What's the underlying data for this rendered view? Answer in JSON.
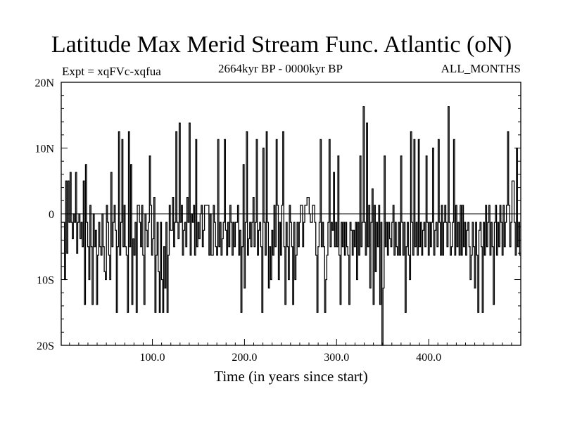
{
  "header": {
    "title": "Latitude Max Merid Stream Func. Atlantic (oN)",
    "experiment": "Expt = xqFVc-xqfua",
    "period": "2664kyr BP - 0000kyr BP",
    "months": "ALL_MONTHS"
  },
  "chart_data": {
    "type": "line",
    "title": "Latitude Max Merid Stream Func. Atlantic (oN)",
    "xlabel": "Time (in years since start)",
    "ylabel": "",
    "xlim": [
      1,
      500
    ],
    "ylim": [
      -20,
      20
    ],
    "xticks": [
      100,
      200,
      300,
      400
    ],
    "xtick_labels": [
      "100.0",
      "200.0",
      "300.0",
      "400.0"
    ],
    "yticks": [
      -20,
      -10,
      0,
      10,
      20
    ],
    "ytick_labels": [
      "20S",
      "10S",
      "0",
      "10N",
      "20N"
    ],
    "zero_line": true,
    "grid": false,
    "series": [
      {
        "values": [
          -1.3,
          -1.3,
          -1.3,
          -10.0,
          5.0,
          -6.0,
          5.0,
          -1.3,
          6.3,
          -1.3,
          -3.8,
          0.0,
          -1.3,
          6.3,
          -6.0,
          -1.3,
          0.0,
          -3.8,
          -1.3,
          -5.0,
          5.0,
          -13.8,
          7.5,
          -1.3,
          -5.0,
          -10.0,
          1.3,
          -5.0,
          -13.8,
          0.0,
          -5.0,
          -2.5,
          -13.8,
          -6.3,
          -1.3,
          -5.0,
          -6.3,
          0.0,
          -5.0,
          -8.8,
          -10.0,
          1.3,
          -1.3,
          -6.3,
          -10.0,
          6.3,
          -5.0,
          -1.3,
          1.3,
          -2.5,
          -15.0,
          -5.0,
          12.5,
          -6.3,
          -1.3,
          11.3,
          -5.0,
          1.3,
          -5.0,
          -6.3,
          -15.0,
          12.5,
          -5.0,
          7.5,
          -13.8,
          -3.8,
          -6.3,
          -1.3,
          -15.0,
          1.3,
          1.3,
          -1.3,
          -5.0,
          1.3,
          -6.3,
          -13.8,
          0.0,
          -2.5,
          -5.0,
          -1.3,
          8.8,
          1.3,
          -6.3,
          -3.8,
          2.5,
          -15.0,
          -6.3,
          -1.3,
          -8.8,
          -15.0,
          -1.3,
          -10.0,
          -15.0,
          -5.0,
          -11.3,
          -1.3,
          -15.0,
          -6.3,
          1.3,
          -2.5,
          -2.5,
          2.5,
          -5.0,
          -1.3,
          12.5,
          -1.3,
          -3.8,
          13.8,
          -1.3,
          1.3,
          -6.3,
          -2.5,
          -1.3,
          -5.0,
          2.5,
          -1.3,
          13.8,
          -6.3,
          0.0,
          -1.3,
          1.3,
          -6.3,
          11.3,
          -5.0,
          -1.3,
          -3.8,
          0.0,
          1.3,
          -5.0,
          -2.5,
          1.3,
          1.3,
          1.3,
          1.3,
          -6.3,
          0.0,
          -6.3,
          -6.3,
          1.3,
          -1.3,
          -5.0,
          -6.3,
          11.3,
          -5.0,
          -1.3,
          -6.3,
          -3.8,
          -1.3,
          11.3,
          -2.5,
          -6.3,
          -1.3,
          -5.0,
          1.3,
          -1.3,
          -6.3,
          -1.3,
          -5.0,
          -1.3,
          -1.3,
          1.3,
          -6.3,
          -2.5,
          -15.0,
          -5.0,
          7.5,
          -11.3,
          -1.3,
          12.5,
          -6.3,
          -3.8,
          -1.3,
          -5.0,
          -1.3,
          2.5,
          -5.0,
          -1.3,
          11.3,
          -6.3,
          -2.5,
          -1.3,
          -5.0,
          -15.0,
          10.0,
          -1.3,
          -6.3,
          12.5,
          -1.3,
          -11.3,
          -5.0,
          -10.0,
          -2.5,
          -6.3,
          1.3,
          -5.0,
          11.3,
          1.3,
          -10.0,
          -1.3,
          -6.3,
          1.3,
          12.5,
          -5.0,
          -13.8,
          -1.3,
          -5.0,
          -10.0,
          1.3,
          -1.3,
          -5.0,
          -13.8,
          -1.3,
          -10.0,
          -6.3,
          -1.3,
          -5.0,
          -1.3,
          1.3,
          1.3,
          -5.0,
          -1.3,
          1.3,
          1.3,
          2.5,
          2.5,
          0.0,
          -1.3,
          -1.3,
          1.3,
          1.3,
          -1.3,
          -6.3,
          -15.0,
          -5.0,
          -1.3,
          11.3,
          -5.0,
          -1.3,
          -5.0,
          -15.0,
          -10.0,
          -6.3,
          -1.3,
          11.3,
          -5.0,
          -1.3,
          -2.5,
          6.3,
          -5.0,
          -1.3,
          -5.0,
          8.8,
          -6.3,
          -13.8,
          -1.3,
          -5.0,
          -1.3,
          -6.3,
          -1.3,
          -5.0,
          -6.3,
          -13.8,
          -1.3,
          -2.5,
          -6.3,
          -2.5,
          -5.0,
          -1.3,
          -10.0,
          -1.3,
          -6.3,
          8.8,
          -5.0,
          -1.3,
          16.3,
          -1.3,
          -6.3,
          13.8,
          -5.0,
          1.3,
          -11.3,
          -1.3,
          3.8,
          -13.8,
          1.3,
          -8.8,
          -1.3,
          -5.0,
          1.3,
          -13.8,
          -1.3,
          -20.0,
          -11.3,
          8.8,
          -5.0,
          -1.3,
          -6.3,
          -1.3,
          -3.8,
          -5.0,
          -1.3,
          1.3,
          -6.3,
          -1.3,
          -5.0,
          -6.3,
          -1.3,
          -6.3,
          8.8,
          -1.3,
          -6.3,
          -1.3,
          -15.0,
          -5.0,
          -1.3,
          -6.3,
          -10.0,
          12.5,
          -1.3,
          -6.3,
          11.3,
          -5.0,
          -1.3,
          -6.3,
          11.3,
          -5.0,
          -1.3,
          -6.3,
          -2.5,
          -1.3,
          -5.0,
          8.8,
          -1.3,
          -6.3,
          -1.3,
          -5.0,
          -1.3,
          10.0,
          -6.3,
          -2.5,
          -1.3,
          -5.0,
          11.3,
          -1.3,
          -6.3,
          1.3,
          -6.3,
          -1.3,
          1.3,
          -1.3,
          -5.0,
          16.3,
          -1.3,
          -6.3,
          -5.0,
          -1.3,
          11.3,
          -6.3,
          1.3,
          -5.0,
          -1.3,
          -6.3,
          1.3,
          -6.3,
          1.3,
          -5.0,
          -1.3,
          -6.3,
          -2.5,
          -1.3,
          -5.0,
          -10.0,
          -6.3,
          -1.3,
          -5.0,
          -11.3,
          -1.3,
          -6.3,
          -15.0,
          -2.5,
          -1.3,
          -5.0,
          -15.0,
          -1.3,
          -6.3,
          1.3,
          -5.0,
          -1.3,
          1.3,
          -6.3,
          -1.3,
          -5.0,
          -13.8,
          -1.3,
          1.3,
          -6.3,
          -1.3,
          -5.0,
          1.3,
          -1.3,
          -6.3,
          1.3,
          -5.0,
          -1.3,
          1.3,
          12.5,
          1.3,
          -5.0,
          -1.3,
          5.0,
          5.0,
          -1.3,
          -6.3,
          10.0,
          -5.0,
          -1.3,
          -6.3
        ]
      }
    ]
  }
}
